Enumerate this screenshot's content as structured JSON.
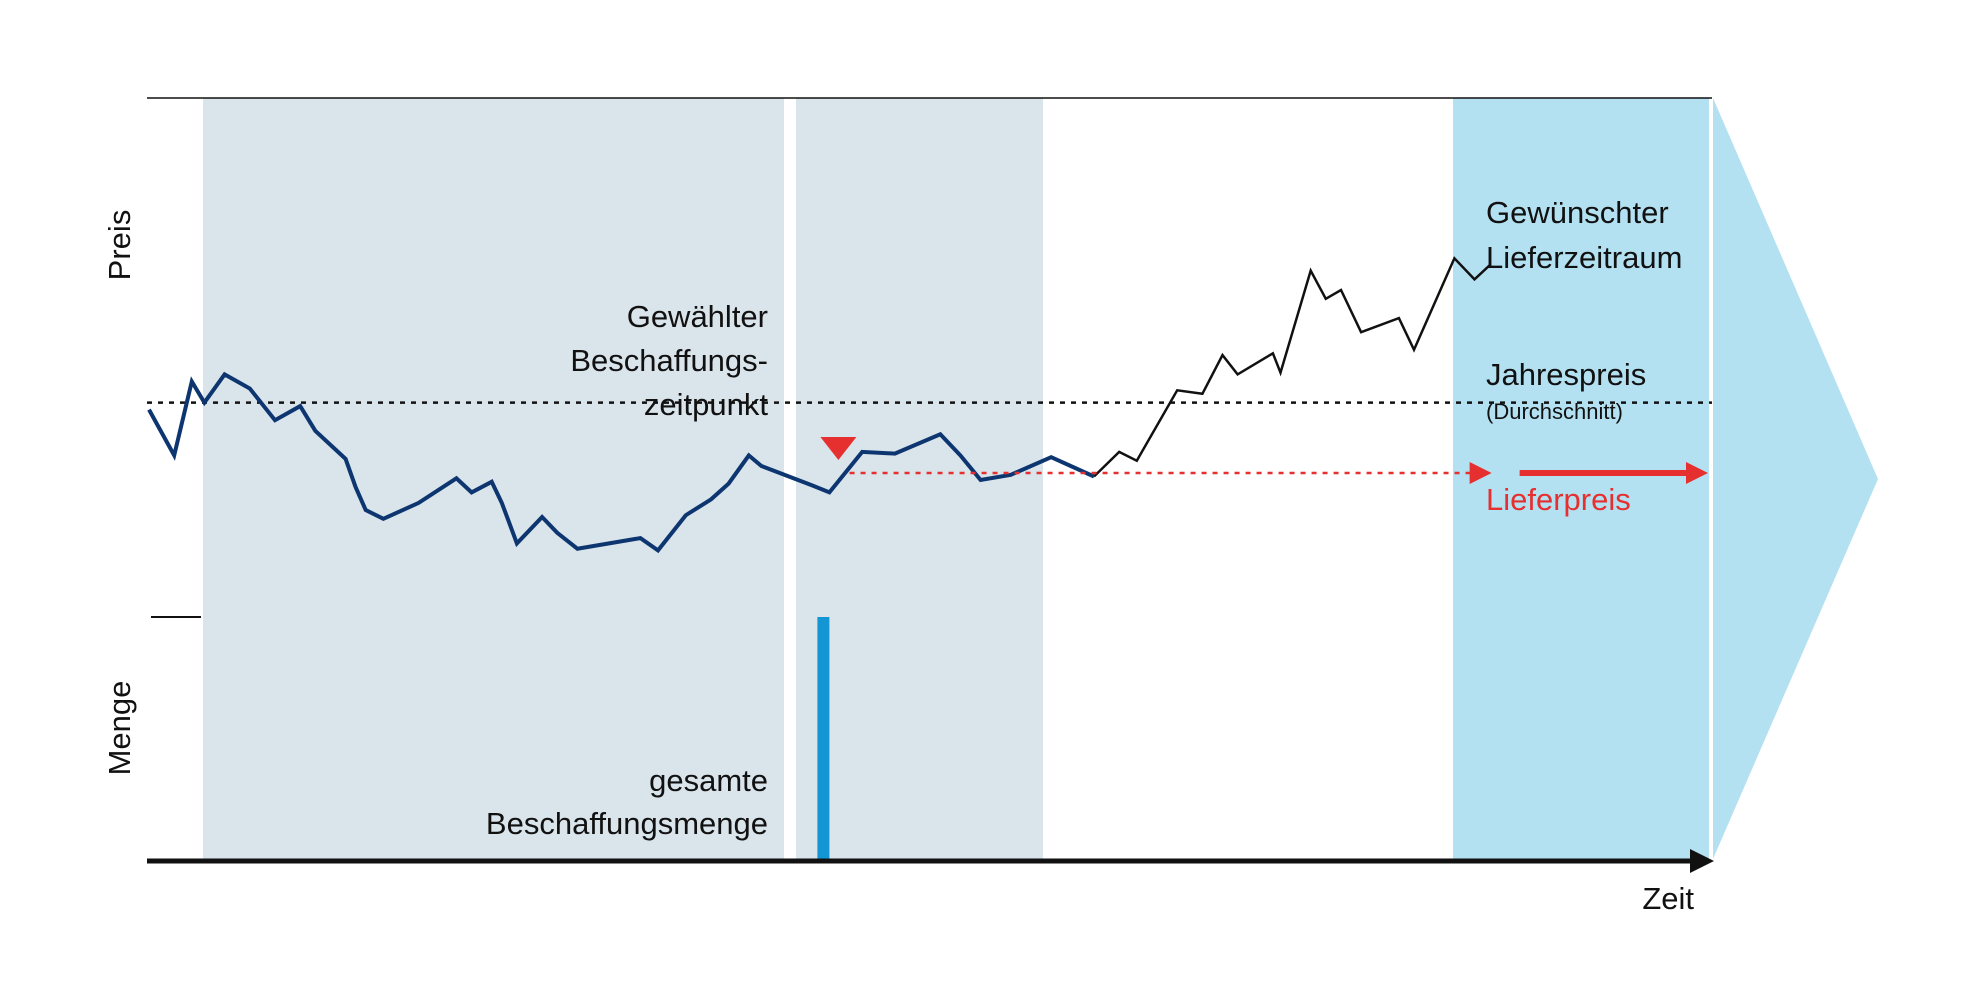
{
  "labels": {
    "y_upper": "Preis",
    "y_lower": "Menge",
    "x_axis": "Zeit",
    "chosen_time_line1": "Gewählter",
    "chosen_time_line2": "Beschaffungs-",
    "chosen_time_line3": "zeitpunkt",
    "delivery_period_line1": "Gewünschter",
    "delivery_period_line2": "Lieferzeitraum",
    "annual_price": "Jahrespreis",
    "annual_price_note": "(Durchschnitt)",
    "delivery_price": "Lieferpreis",
    "total_quantity_line1": "gesamte",
    "total_quantity_line2": "Beschaffungsmenge"
  },
  "colors": {
    "procurement_window": "#d9e4eb",
    "delivery_period": "#b3e1f2",
    "price_line_past": "#0d3570",
    "price_line_future": "#111111",
    "delivery_price": "#e63030",
    "quantity_bar": "#1596d4",
    "axis": "#111111"
  },
  "chart_data": {
    "type": "line",
    "xlabel": "Zeit",
    "ylabel": "Preis",
    "price_series_past": [
      [
        0,
        36
      ],
      [
        10,
        10
      ],
      [
        17,
        52
      ],
      [
        22,
        40
      ],
      [
        30,
        56
      ],
      [
        40,
        48
      ],
      [
        50,
        30
      ],
      [
        60,
        38
      ],
      [
        66,
        24
      ],
      [
        78,
        8
      ],
      [
        82,
        -8
      ],
      [
        86,
        -21
      ],
      [
        93,
        -26
      ],
      [
        107,
        -17
      ],
      [
        122,
        -3
      ],
      [
        128,
        -11
      ],
      [
        136,
        -5
      ],
      [
        140,
        -17
      ],
      [
        146,
        -40
      ],
      [
        156,
        -25
      ],
      [
        162,
        -34
      ],
      [
        170,
        -43
      ],
      [
        195,
        -37
      ],
      [
        202,
        -44
      ],
      [
        213,
        -24
      ],
      [
        223,
        -15
      ],
      [
        230,
        -6
      ],
      [
        238,
        10
      ],
      [
        243,
        4
      ],
      [
        263,
        -7
      ],
      [
        270,
        -11
      ],
      [
        283,
        12
      ],
      [
        296,
        11
      ],
      [
        314,
        22
      ],
      [
        322,
        10
      ],
      [
        330,
        -4
      ],
      [
        342,
        -1
      ],
      [
        358,
        9
      ],
      [
        375,
        -2
      ]
    ],
    "price_series_future": [
      [
        375,
        -2
      ],
      [
        385,
        12
      ],
      [
        392,
        7
      ],
      [
        408,
        47
      ],
      [
        418,
        45
      ],
      [
        426,
        67
      ],
      [
        432,
        56
      ],
      [
        446,
        68
      ],
      [
        449,
        57
      ],
      [
        461,
        115
      ],
      [
        467,
        99
      ],
      [
        473,
        104
      ],
      [
        481,
        80
      ],
      [
        496,
        88
      ],
      [
        502,
        70
      ],
      [
        518,
        122
      ],
      [
        526,
        110
      ],
      [
        532,
        118
      ]
    ],
    "annual_price": 40,
    "delivery_price": 0,
    "purchase_time": 270,
    "procurement_window": [
      23,
      375
    ],
    "delivery_period": [
      532,
      640
    ],
    "quantity_bar": {
      "time": 270,
      "value": 1
    }
  }
}
